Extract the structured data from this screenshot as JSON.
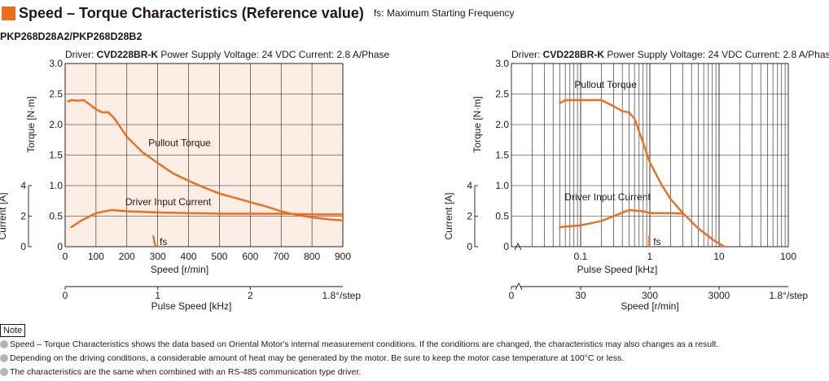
{
  "header": {
    "title": "Speed – Torque Characteristics (Reference value)",
    "subtitle": "fs: Maximum Starting Frequency",
    "model": "PKP268D28A2/PKP268D28B2"
  },
  "colors": {
    "curve": "#ed6d1f",
    "plot_bg": "#fdeee5",
    "grid": "#231815",
    "accent": "#ed6d1f"
  },
  "chart_data": [
    {
      "type": "line",
      "driver_label": "Driver:",
      "driver_model": "CVD228BR-K",
      "conditions": "Power Supply Voltage: 24 VDC  Current: 2.8 A/Phase",
      "xlabel": "Speed [r/min]",
      "ylabel": "Torque [N·m]",
      "ylabel2": "Current [A]",
      "xscale": "linear",
      "xlim": [
        0,
        900
      ],
      "ylim": [
        0,
        3.0
      ],
      "ylim2": [
        0,
        4
      ],
      "xticks": [
        0,
        100,
        200,
        300,
        400,
        500,
        600,
        700,
        800,
        900
      ],
      "yticks": [
        "0",
        "0.5",
        "1.0",
        "1.5",
        "2.0",
        "2.5",
        "3.0"
      ],
      "yticks2": [
        0,
        2,
        4
      ],
      "secondary_axis": {
        "label": "Pulse Speed [kHz]",
        "ticks": [
          "0",
          "1",
          "2"
        ],
        "values": [
          0,
          1,
          2
        ],
        "step_label": "1.8°/step"
      },
      "grid": true,
      "series": [
        {
          "name": "Pullout Torque",
          "x": [
            10,
            20,
            40,
            60,
            80,
            100,
            120,
            140,
            160,
            200,
            250,
            300,
            350,
            400,
            450,
            500,
            550,
            600,
            650,
            700,
            750,
            800,
            850,
            900
          ],
          "y": [
            2.38,
            2.4,
            2.39,
            2.4,
            2.33,
            2.25,
            2.2,
            2.2,
            2.1,
            1.8,
            1.55,
            1.37,
            1.2,
            1.08,
            0.97,
            0.87,
            0.8,
            0.73,
            0.66,
            0.58,
            0.52,
            0.48,
            0.45,
            0.43
          ]
        },
        {
          "name": "Driver Input Current",
          "x": [
            20,
            50,
            100,
            150,
            200,
            300,
            400,
            500,
            600,
            700,
            800,
            900
          ],
          "y": [
            0.32,
            0.42,
            0.55,
            0.6,
            0.58,
            0.56,
            0.55,
            0.54,
            0.54,
            0.54,
            0.53,
            0.53
          ]
        }
      ],
      "fs": {
        "label": "fs",
        "x": 293
      }
    },
    {
      "type": "line",
      "driver_label": "Driver:",
      "driver_model": "CVD228BR-K",
      "conditions": "Power Supply Voltage: 24 VDC  Current: 2.8 A/Phase",
      "xlabel": "Pulse Speed [kHz]",
      "ylabel": "Torque [N·m]",
      "ylabel2": "Current [A]",
      "xscale": "log",
      "xlim": [
        0.01,
        100
      ],
      "ylim": [
        0,
        3.0
      ],
      "ylim2": [
        0,
        4
      ],
      "xticks": [
        "0.1",
        "1",
        "10",
        "100"
      ],
      "yticks": [
        "0",
        "0.5",
        "1.0",
        "1.5",
        "2.0",
        "2.5",
        "3.0"
      ],
      "yticks2": [
        0,
        2,
        4
      ],
      "secondary_axis": {
        "label": "Speed [r/min]",
        "ticks": [
          "0",
          "30",
          "300",
          "3000"
        ],
        "step_label": "1.8°/step"
      },
      "grid": true,
      "series": [
        {
          "name": "Pullout Torque",
          "x": [
            0.05,
            0.06,
            0.1,
            0.2,
            0.3,
            0.4,
            0.5,
            0.6,
            0.8,
            1,
            1.5,
            2,
            3,
            5,
            8,
            12
          ],
          "y": [
            2.35,
            2.4,
            2.4,
            2.4,
            2.3,
            2.22,
            2.2,
            2.1,
            1.7,
            1.38,
            1.0,
            0.78,
            0.55,
            0.3,
            0.12,
            0.0
          ]
        },
        {
          "name": "Driver Input Current",
          "x": [
            0.05,
            0.1,
            0.2,
            0.3,
            0.5,
            0.8,
            1,
            2,
            3
          ],
          "y": [
            0.32,
            0.35,
            0.42,
            0.5,
            0.6,
            0.58,
            0.55,
            0.55,
            0.54
          ]
        }
      ],
      "fs": {
        "label": "fs",
        "x": 0.98
      }
    }
  ],
  "note": {
    "label": "Note",
    "items": [
      "Speed – Torque Characteristics shows the data based on Oriental Motor's internal measurement conditions. If the conditions are changed, the characteristics may also changes as a result.",
      "Depending on the driving conditions, a considerable amount of heat may be generated by the motor. Be sure to keep the motor case temperature at 100°C or less.",
      "The characteristics are the same when combined with an RS-485 communication type driver."
    ]
  }
}
